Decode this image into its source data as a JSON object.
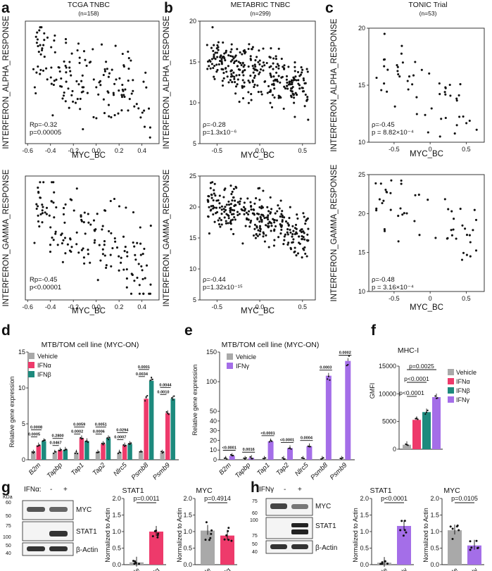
{
  "figure": {
    "a": {
      "label": "a",
      "title": "TCGA TNBC",
      "subtitle": "(n=158)"
    },
    "b": {
      "label": "b",
      "title": "METABRIC TNBC",
      "subtitle": "(n=299)"
    },
    "c": {
      "label": "c",
      "title": "TONIC Trial",
      "subtitle": "(n=53)"
    },
    "d": {
      "label": "d",
      "title": "MTB/TOM cell line (MYC-ON)",
      "ylabel": "Relative gene expression",
      "legend": [
        "Vehicle",
        "IFNα",
        "IFNβ"
      ],
      "pvals_top": [
        "0.0008",
        "0.2800",
        "0.0059",
        "0.0051",
        "0.0294",
        "0.0001",
        "0.0044"
      ],
      "pvals_bot": [
        "0.0005",
        "0.0467",
        "0.0002",
        "0.0006",
        "0.0007",
        "0.0034",
        "0.0010"
      ]
    },
    "e": {
      "label": "e",
      "title": "MTB/TOM cell line (MYC-ON)",
      "ylabel": "Relative gene expression",
      "legend": [
        "Vehicle",
        "IFNγ"
      ],
      "pvals": [
        "<0.0001",
        "0.0016",
        "<0.0001",
        "<0.0001",
        "0.0004",
        "0.0003",
        "0.0002"
      ]
    },
    "f": {
      "label": "f",
      "title": "MHC-I",
      "ylabel": "GMFI",
      "legend": [
        "Vehicle",
        "IFNα",
        "IFNβ",
        "IFNγ"
      ],
      "pvals": [
        "p<0.0001",
        "p<0.0001",
        "p=0.0025"
      ]
    },
    "g": {
      "label": "g",
      "treat": "IFNα:",
      "minus": "-",
      "plus": "+",
      "kda_label": "KDa",
      "kda": [
        "60",
        "50",
        "75",
        "100",
        "50",
        "40"
      ],
      "bands": [
        "MYC",
        "STAT1",
        "β-Actin"
      ],
      "q1_title": "STAT1",
      "q1_p": "p=0.0011",
      "q2_title": "MYC",
      "q2_p": "p=0.4914",
      "ylabel": "Normalized to Actin"
    },
    "h": {
      "label": "h",
      "treat": "IFNγ",
      "minus": "-",
      "plus": "+",
      "kda": [
        "75",
        "60",
        "100",
        "75",
        "50",
        "40"
      ],
      "bands": [
        "MYC",
        "STAT1",
        "β-Actin"
      ],
      "q1_title": "STAT1",
      "q1_p": "p<0.0001",
      "q2_title": "MYC",
      "q2_p": "p=0.0105",
      "ylabel": "Normalized to Actin"
    }
  },
  "chart_data": [
    {
      "id": "a-top",
      "type": "scatter",
      "xlabel": "MYC_BC",
      "ylabel": "INTERFERON_ALPHA_RESPONSE",
      "xlim": [
        -0.62,
        0.55
      ],
      "ylim": [
        0,
        1
      ],
      "xticks": [
        "-0.6",
        "-0.4",
        "-0.2",
        "0.0",
        "0.2",
        "0.4"
      ],
      "xtick_values": [
        -0.6,
        -0.4,
        -0.2,
        0,
        0.2,
        0.4
      ],
      "stats": [
        "Rp=-0.32",
        "p=0.00005"
      ],
      "n": 158,
      "seed": 11,
      "trend": -0.42,
      "spread": 0.17,
      "ymean": 0.5
    },
    {
      "id": "a-bot",
      "type": "scatter",
      "xlabel": "MYC_BC",
      "ylabel": "INTERFERON_GAMMA_RESPONSE",
      "xlim": [
        -0.62,
        0.55
      ],
      "ylim": [
        0,
        1
      ],
      "xticks": [
        "-0.6",
        "-0.4",
        "-0.2",
        "0.0",
        "0.2",
        "0.4"
      ],
      "xtick_values": [
        -0.6,
        -0.4,
        -0.2,
        0,
        0.2,
        0.4
      ],
      "stats": [
        "Rp=-0.45",
        "p<0.00001"
      ],
      "n": 158,
      "seed": 23,
      "trend": -0.55,
      "spread": 0.16,
      "ymean": 0.5
    },
    {
      "id": "b-top",
      "type": "scatter",
      "xlabel": "MYC_BC",
      "ylabel": "INTERFERON_ALPHA_RESPONSE",
      "xlim": [
        -0.7,
        0.65
      ],
      "ylim": [
        5,
        20
      ],
      "xticks": [
        "-0.5",
        "0.0",
        "0.5"
      ],
      "xtick_values": [
        -0.5,
        0,
        0.5
      ],
      "yticks": [
        "5",
        "10",
        "15",
        "20"
      ],
      "ytick_values": [
        5,
        10,
        15,
        20
      ],
      "stats": [
        "ρ=-0.28",
        "p=1.3x10⁻⁶"
      ],
      "n": 299,
      "seed": 37,
      "trend": -3.0,
      "spread": 1.6,
      "ymean": 13.4
    },
    {
      "id": "b-bot",
      "type": "scatter",
      "xlabel": "MYC_BC",
      "ylabel": "INTERFERON_GAMMA_RESPONSE",
      "xlim": [
        -0.7,
        0.65
      ],
      "ylim": [
        5,
        25
      ],
      "xticks": [
        "-0.5",
        "0.0",
        "0.5"
      ],
      "xtick_values": [
        -0.5,
        0,
        0.5
      ],
      "yticks": [
        "5",
        "10",
        "15",
        "20",
        "25"
      ],
      "ytick_values": [
        5,
        10,
        15,
        20,
        25
      ],
      "stats": [
        "ρ=-0.44",
        "p=1.32x10⁻¹⁵"
      ],
      "n": 299,
      "seed": 41,
      "trend": -5.0,
      "spread": 2.0,
      "ymean": 17.8
    },
    {
      "id": "c-top",
      "type": "scatter",
      "xlabel": "MYC_BC",
      "ylabel": "INTERFERON_ALPHA_RESPONSE",
      "xlim": [
        -0.85,
        0.75
      ],
      "ylim": [
        10,
        20
      ],
      "xticks": [
        "-0.5",
        "0",
        "0.5"
      ],
      "xtick_values": [
        -0.5,
        0,
        0.5
      ],
      "yticks": [
        "10",
        "15",
        "20"
      ],
      "ytick_values": [
        10,
        15,
        20
      ],
      "stats": [
        "ρ=-0.45",
        "p = 8.82×10⁻⁴"
      ],
      "n": 53,
      "seed": 53,
      "trend": -2.8,
      "spread": 1.6,
      "ymean": 14.6
    },
    {
      "id": "c-bot",
      "type": "scatter",
      "xlabel": "MYC_BC",
      "ylabel": "INTERFERON_GAMMA_RESPONSE",
      "xlim": [
        -0.85,
        0.75
      ],
      "ylim": [
        10,
        25
      ],
      "xticks": [
        "-0.5",
        "0",
        "0.5"
      ],
      "xtick_values": [
        -0.5,
        0,
        0.5
      ],
      "yticks": [
        "10",
        "15",
        "20",
        "25"
      ],
      "ytick_values": [
        10,
        15,
        20,
        25
      ],
      "stats": [
        "ρ=-0.48",
        "p = 3.16×10⁻⁴"
      ],
      "n": 53,
      "seed": 67,
      "trend": -4.0,
      "spread": 2.0,
      "ymean": 19.3
    },
    {
      "id": "d",
      "type": "bar",
      "title": "MTB/TOM cell line (MYC-ON)",
      "ylabel": "Relative gene expression",
      "ylim": [
        0,
        15
      ],
      "yticks": [
        "0",
        "5",
        "10",
        "15"
      ],
      "ytick_values": [
        0,
        5,
        10,
        15
      ],
      "categories": [
        "B2m",
        "Tapbp",
        "Tap1",
        "Tap2",
        "Nlrc5",
        "Psmb8",
        "Psmb9"
      ],
      "series": [
        {
          "name": "Vehicle",
          "color": "#a9a9a9",
          "values": [
            1,
            1,
            1,
            1,
            1,
            1,
            1
          ]
        },
        {
          "name": "IFNα",
          "color": "#ee3a6b",
          "values": [
            2.0,
            1.3,
            3.0,
            2.2,
            2.0,
            8.5,
            6.5
          ]
        },
        {
          "name": "IFNβ",
          "color": "#1d8a7d",
          "values": [
            2.6,
            1.4,
            2.6,
            3.0,
            2.2,
            11.0,
            8.5
          ]
        }
      ]
    },
    {
      "id": "e",
      "type": "bar",
      "title": "MTB/TOM cell line (MYC-ON)",
      "ylabel": "Relative gene expression",
      "ylim": [
        0,
        150
      ],
      "yticks": [
        "0",
        "10",
        "20",
        "30",
        "40",
        "50",
        "100",
        "150"
      ],
      "ytick_values": [
        0,
        10,
        20,
        30,
        40,
        50,
        100,
        150
      ],
      "categories": [
        "B2m",
        "Tapbp",
        "Tap1",
        "Tap2",
        "Nlrc5",
        "Psmb8",
        "Psmb9"
      ],
      "series": [
        {
          "name": "Vehicle",
          "color": "#a9a9a9",
          "values": [
            1,
            1,
            1,
            1,
            1,
            1,
            1
          ]
        },
        {
          "name": "IFNγ",
          "color": "#a46ee8",
          "values": [
            4,
            2,
            19,
            12,
            14,
            110,
            135
          ]
        }
      ]
    },
    {
      "id": "f",
      "type": "bar",
      "title": "MHC-I",
      "ylabel": "GMFI",
      "ylim": [
        0,
        15000
      ],
      "yticks": [
        "0",
        "5000",
        "10000",
        "15000"
      ],
      "ytick_values": [
        0,
        5000,
        10000,
        15000
      ],
      "categories": [
        "Vehicle",
        "IFNα",
        "IFNβ",
        "IFNγ"
      ],
      "values": [
        800,
        5300,
        6700,
        9400
      ],
      "colors": [
        "#a9a9a9",
        "#ee3a6b",
        "#1d8a7d",
        "#a46ee8"
      ]
    },
    {
      "id": "g-stat1",
      "type": "bar",
      "title": "STAT1",
      "ylabel": "Normalized to Actin",
      "ylim": [
        0,
        2.0
      ],
      "yticks": [
        "0.0",
        "0.5",
        "1.0",
        "1.5",
        "2.0"
      ],
      "ytick_values": [
        0,
        0.5,
        1,
        1.5,
        2
      ],
      "categories": [
        "Vehicle",
        "IFNα"
      ],
      "values": [
        0.07,
        1.0
      ],
      "colors": [
        "#a9a9a9",
        "#ee3a6b"
      ]
    },
    {
      "id": "g-myc",
      "type": "bar",
      "title": "MYC",
      "ylabel": "Normalized to Actin",
      "ylim": [
        0,
        2.0
      ],
      "yticks": [
        "0.0",
        "0.5",
        "1.0",
        "1.5",
        "2.0"
      ],
      "ytick_values": [
        0,
        0.5,
        1,
        1.5,
        2
      ],
      "categories": [
        "Vehicle",
        "IFNα"
      ],
      "values": [
        1.03,
        0.88
      ],
      "colors": [
        "#a9a9a9",
        "#ee3a6b"
      ]
    },
    {
      "id": "h-stat1",
      "type": "bar",
      "title": "STAT1",
      "ylabel": "Normalized to Actin",
      "ylim": [
        0,
        2.0
      ],
      "yticks": [
        "0.0",
        "0.5",
        "1.0",
        "1.5",
        "2.0"
      ],
      "ytick_values": [
        0,
        0.5,
        1,
        1.5,
        2
      ],
      "categories": [
        "Vehicle",
        "IFNγ"
      ],
      "values": [
        0.06,
        1.17
      ],
      "colors": [
        "#a9a9a9",
        "#a46ee8"
      ]
    },
    {
      "id": "h-myc",
      "type": "bar",
      "title": "MYC",
      "ylabel": "Normalized to Actin",
      "ylim": [
        0,
        2.0
      ],
      "yticks": [
        "0.0",
        "0.5",
        "1.0",
        "1.5",
        "2.0"
      ],
      "ytick_values": [
        0,
        0.5,
        1,
        1.5,
        2
      ],
      "categories": [
        "Vehicle",
        "IFNγ"
      ],
      "values": [
        1.04,
        0.58
      ],
      "colors": [
        "#a9a9a9",
        "#a46ee8"
      ]
    }
  ]
}
